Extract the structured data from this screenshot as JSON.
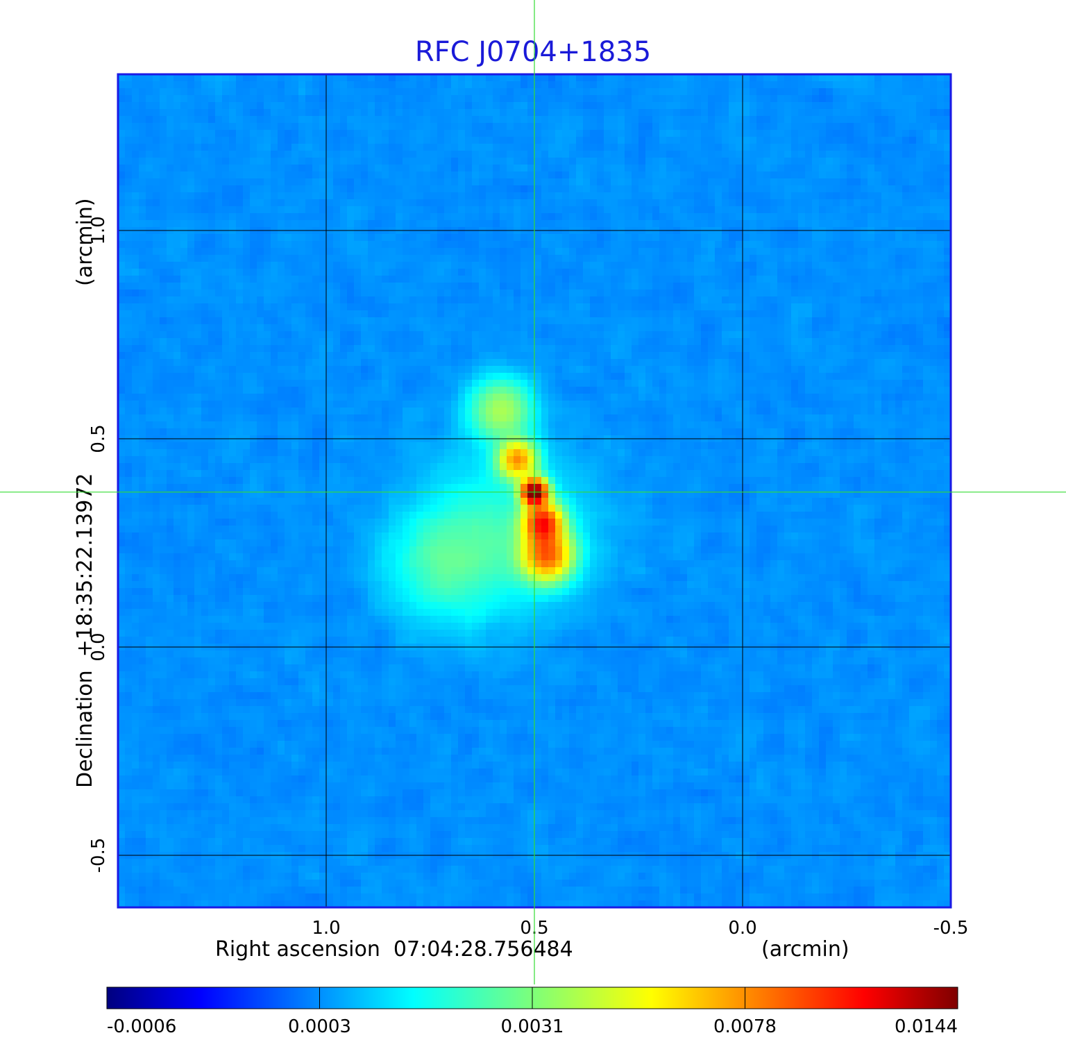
{
  "chart_data": {
    "type": "heatmap",
    "title": "RFC J0704+1835",
    "xlabel": "Right ascension  07:04:28.756484",
    "xunit": "(arcmin)",
    "ylabel": "Declination  +18:35:22.13972",
    "yunit": "(arcmin)",
    "xlim": [
      1.5,
      -0.5
    ],
    "ylim": [
      -0.625,
      1.375
    ],
    "x_ticks": [
      {
        "value": 1.0,
        "label": "1.0"
      },
      {
        "value": 0.5,
        "label": "0.5"
      },
      {
        "value": 0.0,
        "label": "0.0"
      },
      {
        "value": -0.5,
        "label": "-0.5"
      }
    ],
    "y_ticks": [
      {
        "value": 1.0,
        "label": "1.0"
      },
      {
        "value": 0.5,
        "label": "0.5"
      },
      {
        "value": 0.0,
        "label": "0.0"
      },
      {
        "value": -0.5,
        "label": "-0.5"
      }
    ],
    "grid": true,
    "crosshair": {
      "x": 0.5,
      "y": 0.372
    },
    "colorbar": {
      "colormap": "jet",
      "ticks": [
        "-0.0006",
        "0.0003",
        "0.0031",
        "0.0078",
        "0.0144"
      ]
    },
    "emission_components": [
      {
        "x": 0.5,
        "y": 0.372,
        "peak": 0.0144,
        "width": 0.02
      },
      {
        "x": 0.48,
        "y": 0.3,
        "peak": 0.0085,
        "width": 0.03
      },
      {
        "x": 0.47,
        "y": 0.22,
        "peak": 0.007,
        "width": 0.04
      },
      {
        "x": 0.54,
        "y": 0.45,
        "peak": 0.006,
        "width": 0.03
      },
      {
        "x": 0.58,
        "y": 0.57,
        "peak": 0.0028,
        "width": 0.05
      },
      {
        "x": 0.72,
        "y": 0.2,
        "peak": 0.0014,
        "width": 0.09
      },
      {
        "x": 0.56,
        "y": 0.28,
        "peak": 0.0012,
        "width": 0.13
      }
    ]
  },
  "colors": {
    "title": "#1a1ad8",
    "axis_frame": "#1a1ae6",
    "grid": "#000000",
    "crosshair": "#33dd33"
  }
}
